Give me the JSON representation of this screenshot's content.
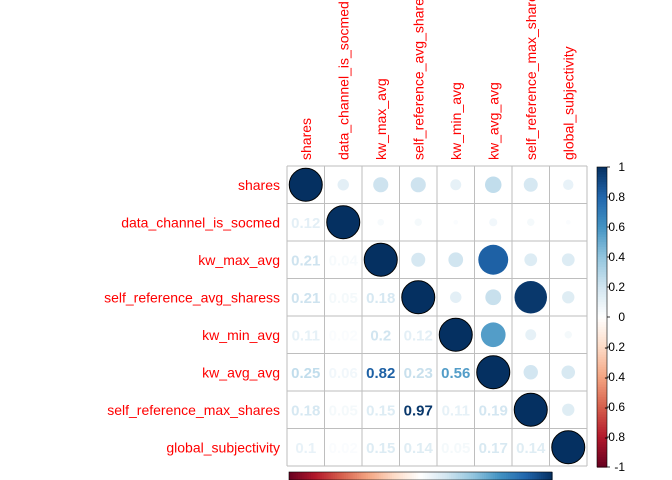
{
  "chart_data": {
    "type": "heatmap",
    "title": "",
    "variables": [
      "shares",
      "data_channel_is_socmed",
      "kw_max_avg",
      "self_reference_avg_sharess",
      "kw_min_avg",
      "kw_avg_avg",
      "self_reference_max_shares",
      "global_subjectivity"
    ],
    "column_labels": [
      "shares",
      "data_channel_is_socmed",
      "kw_max_avg",
      "self_reference_avg_sharess",
      "kw_min_avg",
      "kw_avg_avg",
      "self_reference_max_shares",
      "global_subjectivity"
    ],
    "matrix": [
      [
        1.0,
        0.12,
        0.21,
        0.21,
        0.11,
        0.25,
        0.18,
        0.1
      ],
      [
        0.12,
        1.0,
        0.04,
        0.05,
        0.02,
        0.06,
        0.05,
        0.02
      ],
      [
        0.21,
        0.04,
        1.0,
        0.18,
        0.2,
        0.82,
        0.15,
        0.15
      ],
      [
        0.21,
        0.05,
        0.18,
        1.0,
        0.12,
        0.23,
        0.97,
        0.14
      ],
      [
        0.11,
        0.02,
        0.2,
        0.12,
        1.0,
        0.56,
        0.11,
        0.05
      ],
      [
        0.25,
        0.06,
        0.82,
        0.23,
        0.56,
        1.0,
        0.19,
        0.17
      ],
      [
        0.18,
        0.05,
        0.15,
        0.97,
        0.11,
        0.19,
        1.0,
        0.14
      ],
      [
        0.1,
        0.02,
        0.15,
        0.14,
        0.05,
        0.17,
        0.14,
        1.0
      ]
    ],
    "lower_labels": [
      [
        null,
        null,
        null,
        null,
        null,
        null,
        null,
        null
      ],
      [
        "0.12",
        null,
        null,
        null,
        null,
        null,
        null,
        null
      ],
      [
        "0.21",
        "0.04",
        null,
        null,
        null,
        null,
        null,
        null
      ],
      [
        "0.21",
        "0.05",
        "0.18",
        null,
        null,
        null,
        null,
        null
      ],
      [
        "0.11",
        "0.02",
        "0.2",
        "0.12",
        null,
        null,
        null,
        null
      ],
      [
        "0.25",
        "0.06",
        "0.82",
        "0.23",
        "0.56",
        null,
        null,
        null
      ],
      [
        "0.18",
        "0.05",
        "0.15",
        "0.97",
        "0.11",
        "0.19",
        null,
        null
      ],
      [
        "0.1",
        "0.02",
        "0.15",
        "0.14",
        "0.05",
        "0.17",
        "0.14",
        null
      ]
    ],
    "upper_glyph": "circle",
    "lower_glyph": "number",
    "color_scale": {
      "range": [
        -1,
        1
      ],
      "colors": [
        "#67001F",
        "#B2182B",
        "#D6604D",
        "#F4A582",
        "#FDDBC7",
        "#FFFFFF",
        "#D1E5F0",
        "#92C5DE",
        "#4393C3",
        "#2166AC",
        "#053061"
      ]
    },
    "colorbar": {
      "ticks": [
        "1",
        "0.8",
        "0.6",
        "0.4",
        "0.2",
        "0",
        "-0.2",
        "-0.4",
        "-0.6",
        "-0.8",
        "-1"
      ]
    },
    "label_color": "#FF0000",
    "grid_color": "#BEBEBE"
  }
}
